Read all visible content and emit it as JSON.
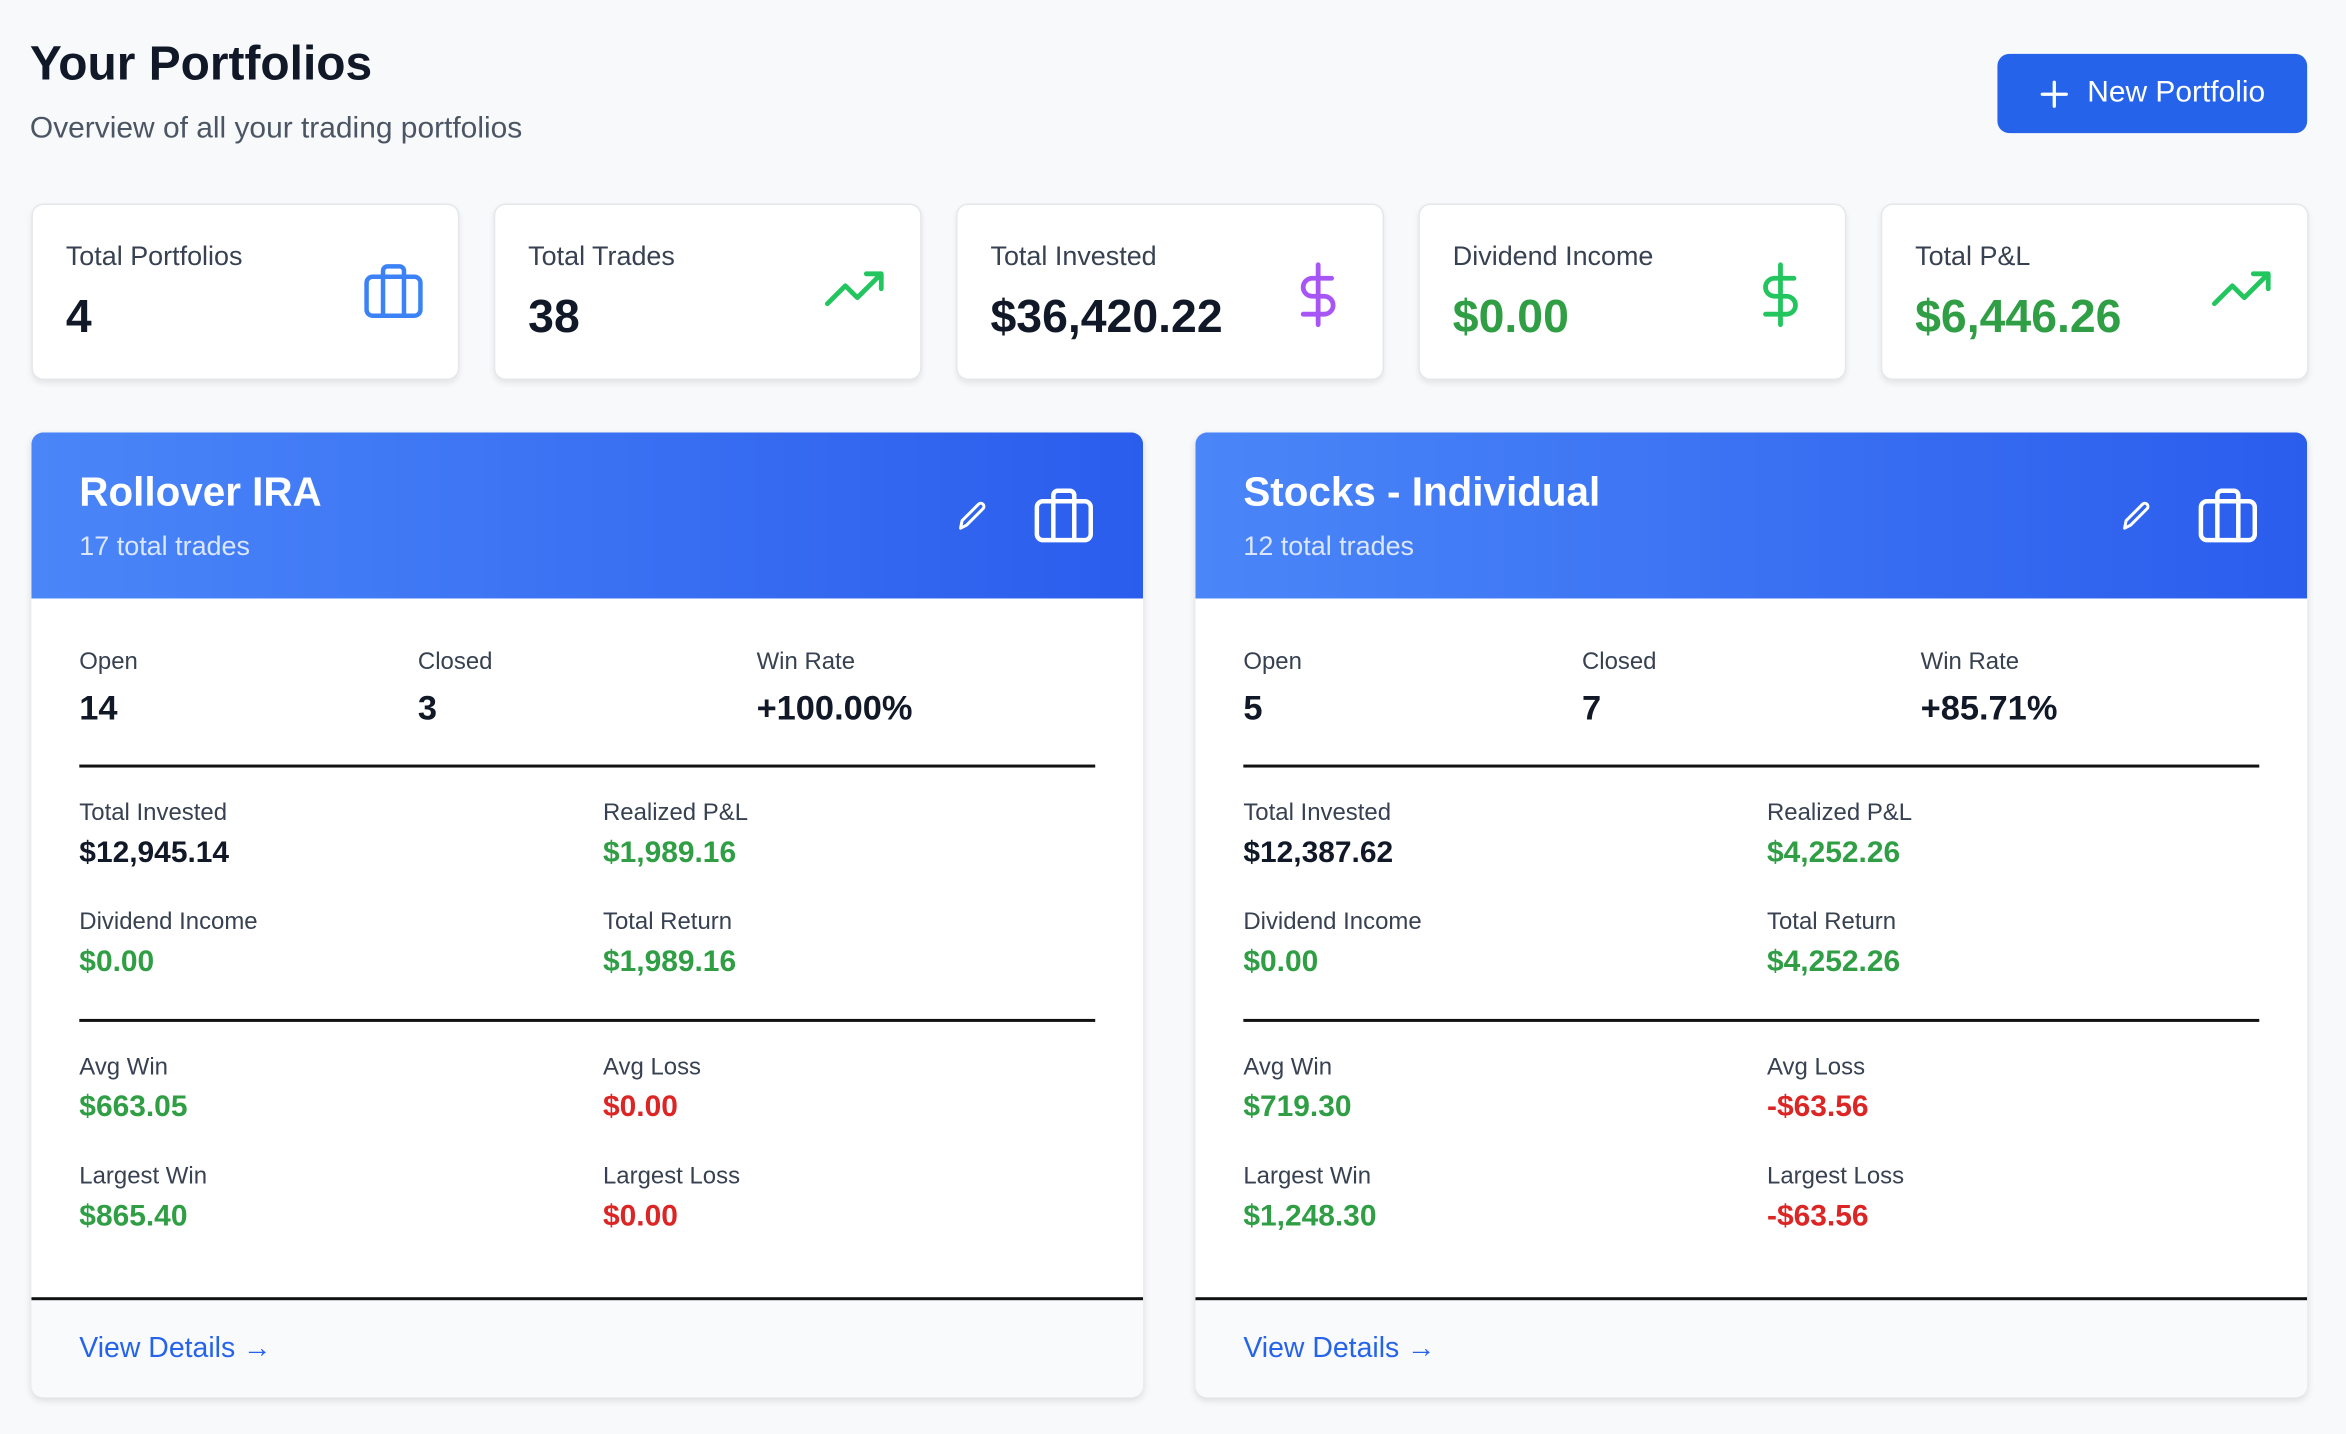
{
  "header": {
    "title": "Your Portfolios",
    "subtitle": "Overview of all your trading portfolios",
    "button": "New Portfolio"
  },
  "stats": [
    {
      "label": "Total Portfolios",
      "value": "4",
      "color": "#111827",
      "icon": "briefcase",
      "icon_color": "#3b82f6"
    },
    {
      "label": "Total Trades",
      "value": "38",
      "color": "#111827",
      "icon": "trend",
      "icon_color": "#22c55e"
    },
    {
      "label": "Total Invested",
      "value": "$36,420.22",
      "color": "#111827",
      "icon": "dollar",
      "icon_color": "#a855f7"
    },
    {
      "label": "Dividend Income",
      "value": "$0.00",
      "color": "#2f9e44",
      "icon": "dollar",
      "icon_color": "#22c55e"
    },
    {
      "label": "Total P&L",
      "value": "$6,446.26",
      "color": "#2f9e44",
      "icon": "trend",
      "icon_color": "#22c55e"
    }
  ],
  "portfolios": [
    {
      "name": "Rollover IRA",
      "subtitle": "17 total trades",
      "counts": [
        {
          "label": "Open",
          "value": "14"
        },
        {
          "label": "Closed",
          "value": "3"
        },
        {
          "label": "Win Rate",
          "value": "+100.00%"
        }
      ],
      "groups": [
        [
          {
            "label": "Total Invested",
            "value": "$12,945.14",
            "color": "#111827"
          },
          {
            "label": "Realized P&L",
            "value": "$1,989.16",
            "color": "#2f9e44"
          },
          {
            "label": "Dividend Income",
            "value": "$0.00",
            "color": "#2f9e44"
          },
          {
            "label": "Total Return",
            "value": "$1,989.16",
            "color": "#2f9e44"
          }
        ],
        [
          {
            "label": "Avg Win",
            "value": "$663.05",
            "color": "#2f9e44"
          },
          {
            "label": "Avg Loss",
            "value": "$0.00",
            "color": "#dc2626"
          },
          {
            "label": "Largest Win",
            "value": "$865.40",
            "color": "#2f9e44"
          },
          {
            "label": "Largest Loss",
            "value": "$0.00",
            "color": "#dc2626"
          }
        ]
      ],
      "link": "View Details →"
    },
    {
      "name": "Stocks - Individual",
      "subtitle": "12 total trades",
      "counts": [
        {
          "label": "Open",
          "value": "5"
        },
        {
          "label": "Closed",
          "value": "7"
        },
        {
          "label": "Win Rate",
          "value": "+85.71%"
        }
      ],
      "groups": [
        [
          {
            "label": "Total Invested",
            "value": "$12,387.62",
            "color": "#111827"
          },
          {
            "label": "Realized P&L",
            "value": "$4,252.26",
            "color": "#2f9e44"
          },
          {
            "label": "Dividend Income",
            "value": "$0.00",
            "color": "#2f9e44"
          },
          {
            "label": "Total Return",
            "value": "$4,252.26",
            "color": "#2f9e44"
          }
        ],
        [
          {
            "label": "Avg Win",
            "value": "$719.30",
            "color": "#2f9e44"
          },
          {
            "label": "Avg Loss",
            "value": "-$63.56",
            "color": "#dc2626"
          },
          {
            "label": "Largest Win",
            "value": "$1,248.30",
            "color": "#2f9e44"
          },
          {
            "label": "Largest Loss",
            "value": "-$63.56",
            "color": "#dc2626"
          }
        ]
      ],
      "link": "View Details →"
    }
  ]
}
